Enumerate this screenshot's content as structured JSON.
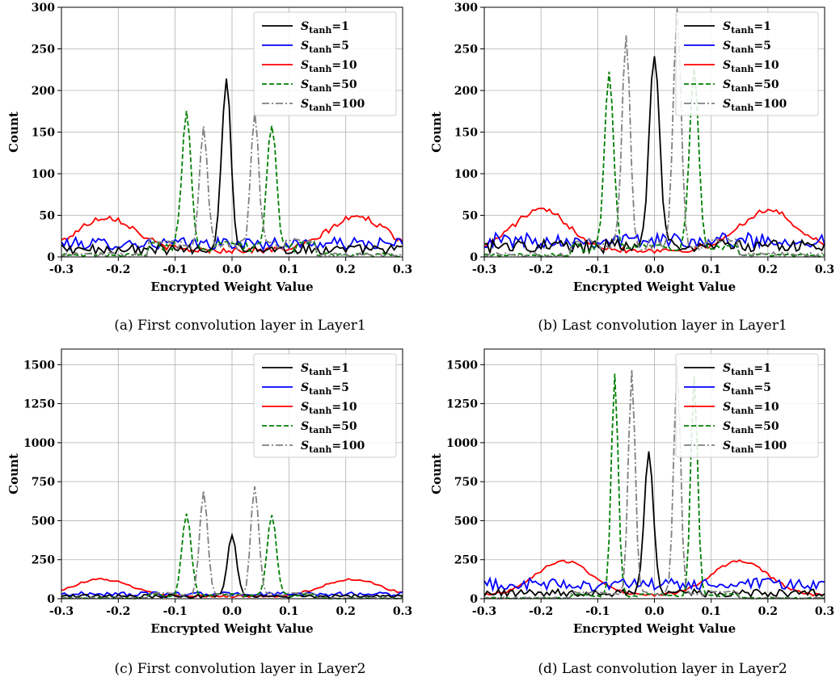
{
  "figure": {
    "xlabel": "Encrypted Weight Value",
    "ylabel": "Count",
    "legend_entries": [
      {
        "base": "S",
        "sub": "tanh",
        "suffix": "=1",
        "color": "#000000",
        "dash": "solid"
      },
      {
        "base": "S",
        "sub": "tanh",
        "suffix": "=5",
        "color": "#0000ff",
        "dash": "solid"
      },
      {
        "base": "S",
        "sub": "tanh",
        "suffix": "=10",
        "color": "#ff0000",
        "dash": "solid"
      },
      {
        "base": "S",
        "sub": "tanh",
        "suffix": "=50",
        "color": "#008000",
        "dash": "dashed"
      },
      {
        "base": "S",
        "sub": "tanh",
        "suffix": "=100",
        "color": "#808080",
        "dash": "dashdot"
      }
    ],
    "xticks": [
      "-0.3",
      "-0.2",
      "-0.1",
      "0.0",
      "0.1",
      "0.2",
      "0.3"
    ]
  },
  "chart_data": [
    {
      "type": "line",
      "caption": "(a) First convolution layer in Layer1",
      "xlabel": "Encrypted Weight Value",
      "ylabel": "Count",
      "xlim": [
        -0.3,
        0.3
      ],
      "ylim": [
        0,
        300
      ],
      "yticks": [
        "0",
        "50",
        "100",
        "150",
        "200",
        "250",
        "300"
      ],
      "grid": true,
      "legend": "top-right",
      "series": [
        {
          "name": "S_tanh=1",
          "peaks": [
            {
              "c": -0.01,
              "w": 0.008,
              "h": 205
            }
          ],
          "background": 10
        },
        {
          "name": "S_tanh=5",
          "peaks": [],
          "background": 16
        },
        {
          "name": "S_tanh=10",
          "peaks": [
            {
              "c": -0.22,
              "w": 0.05,
              "h": 40
            },
            {
              "c": 0.22,
              "w": 0.05,
              "h": 40
            }
          ],
          "background": 8
        },
        {
          "name": "S_tanh=50",
          "peaks": [
            {
              "c": -0.08,
              "w": 0.008,
              "h": 160
            },
            {
              "c": 0.07,
              "w": 0.008,
              "h": 150
            }
          ],
          "background": 12
        },
        {
          "name": "S_tanh=100",
          "peaks": [
            {
              "c": -0.05,
              "w": 0.007,
              "h": 140
            },
            {
              "c": 0.04,
              "w": 0.007,
              "h": 160
            }
          ],
          "background": 14
        }
      ]
    },
    {
      "type": "line",
      "caption": "(b) Last convolution layer in Layer1",
      "xlabel": "Encrypted Weight Value",
      "ylabel": "Count",
      "xlim": [
        -0.3,
        0.3
      ],
      "ylim": [
        0,
        300
      ],
      "yticks": [
        "0",
        "50",
        "100",
        "150",
        "200",
        "250",
        "300"
      ],
      "grid": true,
      "legend": "top-right",
      "series": [
        {
          "name": "S_tanh=1",
          "peaks": [
            {
              "c": 0.0,
              "w": 0.009,
              "h": 230
            }
          ],
          "background": 14
        },
        {
          "name": "S_tanh=5",
          "peaks": [],
          "background": 20
        },
        {
          "name": "S_tanh=10",
          "peaks": [
            {
              "c": -0.2,
              "w": 0.05,
              "h": 48
            },
            {
              "c": 0.2,
              "w": 0.05,
              "h": 48
            }
          ],
          "background": 8
        },
        {
          "name": "S_tanh=50",
          "peaks": [
            {
              "c": -0.08,
              "w": 0.008,
              "h": 210
            },
            {
              "c": 0.07,
              "w": 0.008,
              "h": 215
            }
          ],
          "background": 10
        },
        {
          "name": "S_tanh=100",
          "peaks": [
            {
              "c": -0.05,
              "w": 0.007,
              "h": 255
            },
            {
              "c": 0.04,
              "w": 0.007,
              "h": 280
            }
          ],
          "background": 14
        }
      ]
    },
    {
      "type": "line",
      "caption": "(c) First convolution layer in Layer2",
      "xlabel": "Encrypted Weight Value",
      "ylabel": "Count",
      "xlim": [
        -0.3,
        0.3
      ],
      "ylim": [
        0,
        1600
      ],
      "yticks": [
        "0",
        "250",
        "500",
        "750",
        "1000",
        "1250",
        "1500"
      ],
      "grid": true,
      "legend": "top-right",
      "series": [
        {
          "name": "S_tanh=1",
          "peaks": [
            {
              "c": 0.0,
              "w": 0.008,
              "h": 390
            }
          ],
          "background": 18
        },
        {
          "name": "S_tanh=5",
          "peaks": [],
          "background": 30
        },
        {
          "name": "S_tanh=10",
          "peaks": [
            {
              "c": -0.23,
              "w": 0.05,
              "h": 110
            },
            {
              "c": 0.21,
              "w": 0.05,
              "h": 110
            }
          ],
          "background": 15
        },
        {
          "name": "S_tanh=50",
          "peaks": [
            {
              "c": -0.08,
              "w": 0.008,
              "h": 520
            },
            {
              "c": 0.07,
              "w": 0.008,
              "h": 520
            }
          ],
          "background": 20
        },
        {
          "name": "S_tanh=100",
          "peaks": [
            {
              "c": -0.05,
              "w": 0.007,
              "h": 660
            },
            {
              "c": 0.04,
              "w": 0.007,
              "h": 700
            }
          ],
          "background": 25
        }
      ]
    },
    {
      "type": "line",
      "caption": "(d) Last convolution layer in Layer2",
      "xlabel": "Encrypted Weight Value",
      "ylabel": "Count",
      "xlim": [
        -0.3,
        0.3
      ],
      "ylim": [
        0,
        1600
      ],
      "yticks": [
        "0",
        "250",
        "500",
        "750",
        "1000",
        "1250",
        "1500"
      ],
      "grid": true,
      "legend": "top-right",
      "series": [
        {
          "name": "S_tanh=1",
          "peaks": [
            {
              "c": -0.01,
              "w": 0.008,
              "h": 900
            }
          ],
          "background": 40
        },
        {
          "name": "S_tanh=5",
          "peaks": [],
          "background": 90
        },
        {
          "name": "S_tanh=10",
          "peaks": [
            {
              "c": -0.16,
              "w": 0.05,
              "h": 220
            },
            {
              "c": 0.15,
              "w": 0.05,
              "h": 220
            }
          ],
          "background": 20
        },
        {
          "name": "S_tanh=50",
          "peaks": [
            {
              "c": -0.07,
              "w": 0.006,
              "h": 1420
            },
            {
              "c": 0.07,
              "w": 0.006,
              "h": 1400
            }
          ],
          "background": 20
        },
        {
          "name": "S_tanh=100",
          "peaks": [
            {
              "c": -0.04,
              "w": 0.006,
              "h": 1430
            },
            {
              "c": 0.04,
              "w": 0.006,
              "h": 1460
            }
          ],
          "background": 30
        }
      ]
    }
  ]
}
